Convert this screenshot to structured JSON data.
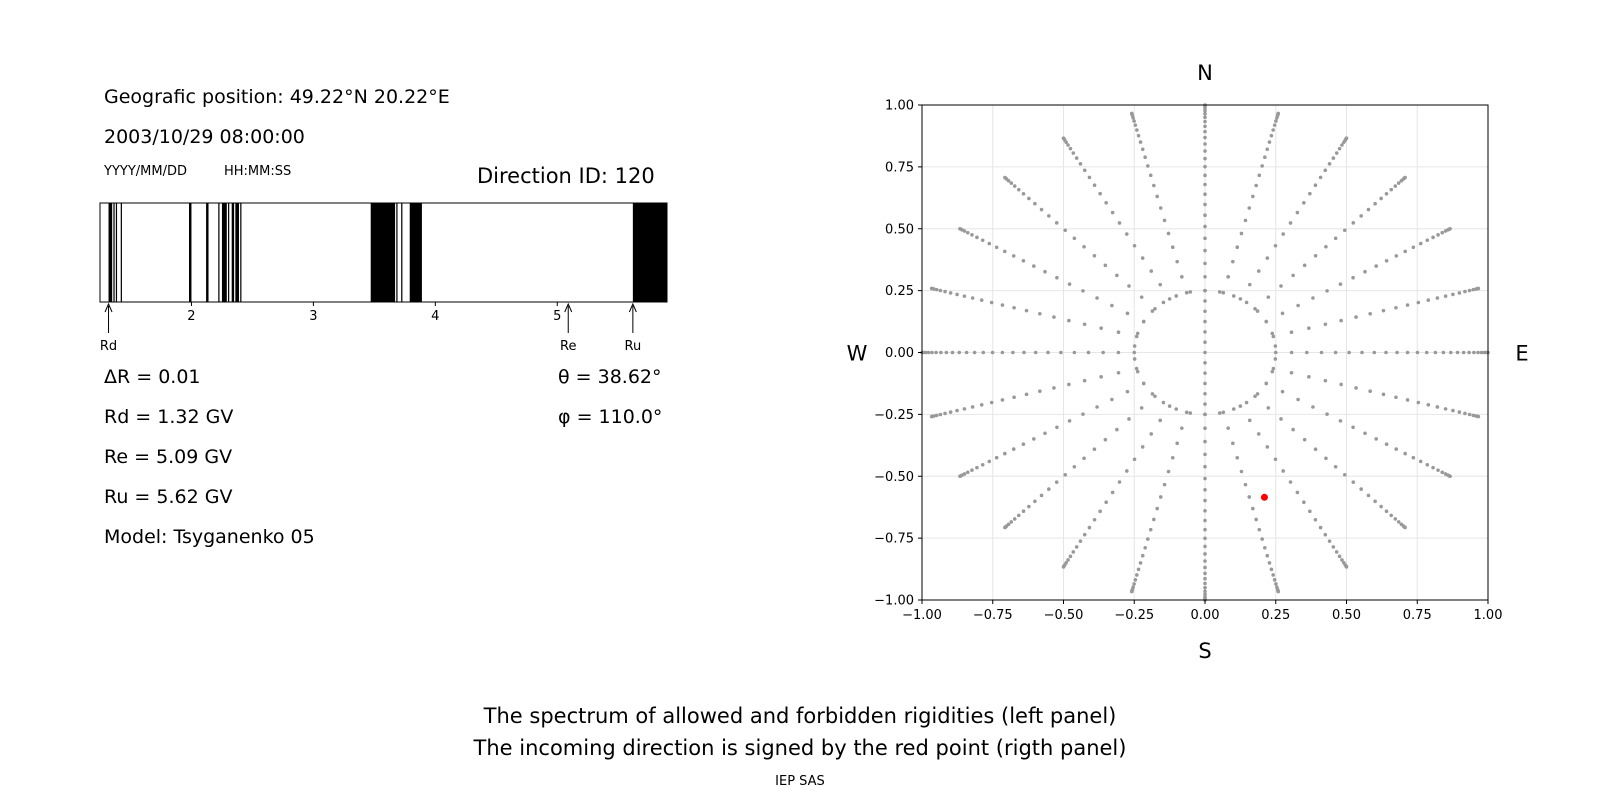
{
  "info": {
    "position": "Geografic position: 49.22°N 20.22°E",
    "datetime": "2003/10/29 08:00:00",
    "date_format": "YYYY/MM/DD",
    "time_format": "HH:MM:SS",
    "direction_id": "Direction ID: 120",
    "delta_r": "ΔR = 0.01",
    "rd": "Rd = 1.32 GV",
    "re": "Re = 5.09 GV",
    "ru": "Ru = 5.62 GV",
    "model": "Model: Tsyganenko 05",
    "theta": "θ = 38.62°",
    "phi": "φ = 110.0°"
  },
  "captions": {
    "line1": "The spectrum of allowed and forbidden rigidities (left panel)",
    "line2": "The incoming direction is signed by the red point (rigth panel)",
    "credit": "IEP SAS"
  },
  "chart_data": [
    {
      "type": "spectrum",
      "xlim": [
        1.25,
        5.9
      ],
      "x_ticks": [
        "2",
        "3",
        "4",
        "5"
      ],
      "forbidden_bands": [
        [
          1.32,
          1.35
        ],
        [
          1.36,
          1.37
        ],
        [
          1.38,
          1.39
        ],
        [
          1.42,
          1.43
        ],
        [
          1.98,
          2.0
        ],
        [
          2.12,
          2.14
        ],
        [
          2.22,
          2.23
        ],
        [
          2.25,
          2.29
        ],
        [
          2.3,
          2.31
        ],
        [
          2.33,
          2.35
        ],
        [
          2.36,
          2.39
        ],
        [
          2.4,
          2.41
        ],
        [
          3.47,
          3.67
        ],
        [
          3.68,
          3.69
        ],
        [
          3.72,
          3.73
        ],
        [
          3.79,
          3.89
        ],
        [
          5.62,
          5.9
        ]
      ],
      "markers": [
        {
          "label": "Rd",
          "value": 1.32
        },
        {
          "label": "Re",
          "value": 5.09
        },
        {
          "label": "Ru",
          "value": 5.62
        }
      ]
    },
    {
      "type": "scatter",
      "xlim": [
        -1.0,
        1.0
      ],
      "ylim": [
        -1.0,
        1.0
      ],
      "x_ticks": [
        "−1.00",
        "−0.75",
        "−0.50",
        "−0.25",
        "0.00",
        "0.25",
        "0.50",
        "0.75",
        "1.00"
      ],
      "y_ticks": [
        "−1.00",
        "−0.75",
        "−0.50",
        "−0.25",
        "0.00",
        "0.25",
        "0.50",
        "0.75",
        "1.00"
      ],
      "grid": true,
      "compass": {
        "north": "N",
        "south": "S",
        "west": "W",
        "east": "E"
      },
      "direction_grid": {
        "spokes": 24,
        "rings": [
          0.25,
          0.42,
          0.55,
          0.66,
          0.76,
          0.84,
          0.9,
          0.95,
          0.985,
          1.0
        ],
        "inner_ring_points": 30,
        "inner_radius": 0.25
      },
      "point_color": "#999999",
      "highlight": {
        "x": 0.21,
        "y": -0.585,
        "color": "#ff0000"
      }
    }
  ]
}
